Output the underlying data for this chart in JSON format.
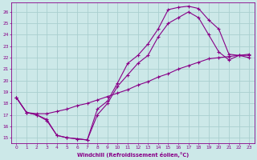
{
  "xlabel": "Windchill (Refroidissement éolien,°C)",
  "bg_color": "#cce8e8",
  "grid_color": "#aacfcf",
  "line_color": "#880088",
  "xlim": [
    -0.5,
    23.5
  ],
  "ylim": [
    14.5,
    26.8
  ],
  "xticks": [
    0,
    1,
    2,
    3,
    4,
    5,
    6,
    7,
    8,
    9,
    10,
    11,
    12,
    13,
    14,
    15,
    16,
    17,
    18,
    19,
    20,
    21,
    22,
    23
  ],
  "yticks": [
    15,
    16,
    17,
    18,
    19,
    20,
    21,
    22,
    23,
    24,
    25,
    26
  ],
  "curve1_x": [
    0,
    1,
    2,
    3,
    4,
    5,
    6,
    7,
    8,
    9,
    10,
    11,
    12,
    13,
    14,
    15,
    16,
    17,
    18,
    19,
    20,
    21,
    22,
    23
  ],
  "curve1_y": [
    18.5,
    17.2,
    17.0,
    16.5,
    15.2,
    15.0,
    14.9,
    14.8,
    17.5,
    18.2,
    19.8,
    21.5,
    22.2,
    23.2,
    24.5,
    26.2,
    26.4,
    26.5,
    26.3,
    25.3,
    24.5,
    22.3,
    22.2,
    22.0
  ],
  "curve2_x": [
    0,
    1,
    2,
    3,
    4,
    5,
    6,
    7,
    8,
    9,
    10,
    11,
    12,
    13,
    14,
    15,
    16,
    17,
    18,
    19,
    20,
    21,
    22,
    23
  ],
  "curve2_y": [
    18.5,
    17.2,
    17.0,
    16.6,
    15.2,
    15.0,
    14.9,
    14.8,
    17.0,
    18.0,
    19.5,
    20.5,
    21.5,
    22.2,
    23.8,
    25.0,
    25.5,
    26.0,
    25.5,
    24.0,
    22.5,
    21.8,
    22.2,
    22.2
  ],
  "curve3_x": [
    0,
    1,
    2,
    3,
    4,
    5,
    6,
    7,
    8,
    9,
    10,
    11,
    12,
    13,
    14,
    15,
    16,
    17,
    18,
    19,
    20,
    21,
    22,
    23
  ],
  "curve3_y": [
    18.5,
    17.2,
    17.1,
    17.1,
    17.3,
    17.5,
    17.8,
    18.0,
    18.3,
    18.6,
    18.9,
    19.2,
    19.6,
    19.9,
    20.3,
    20.6,
    21.0,
    21.3,
    21.6,
    21.9,
    22.0,
    22.1,
    22.2,
    22.3
  ]
}
